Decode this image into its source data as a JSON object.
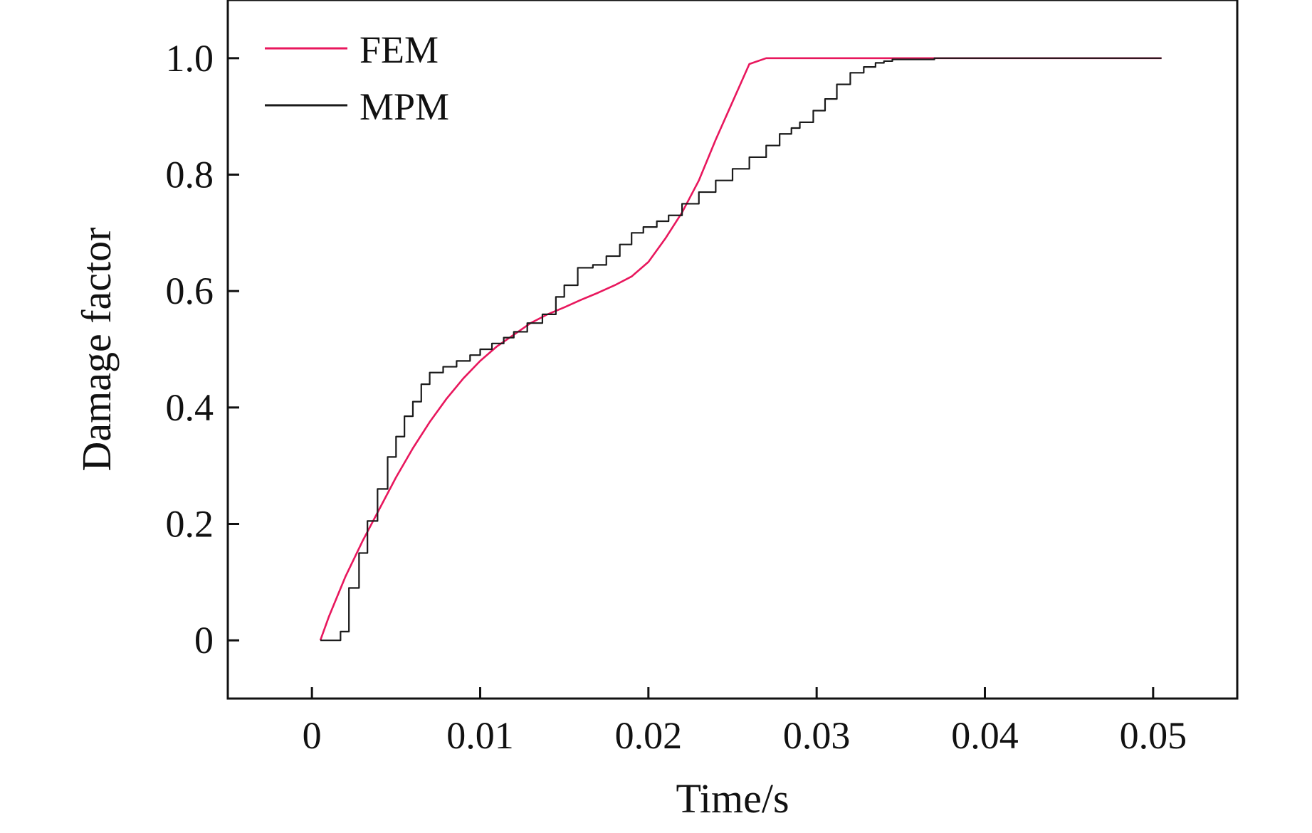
{
  "chart_data": {
    "type": "line",
    "title": "",
    "xlabel": "Time/s",
    "ylabel": "Damage factor",
    "xlim": [
      -0.005,
      0.055
    ],
    "ylim": [
      -0.1,
      1.1
    ],
    "xticks": [
      0,
      0.01,
      0.02,
      0.03,
      0.04,
      0.05
    ],
    "xtick_labels": [
      "0",
      "0.01",
      "0.02",
      "0.03",
      "0.04",
      "0.05"
    ],
    "yticks": [
      0,
      0.2,
      0.4,
      0.6,
      0.8,
      1.0
    ],
    "ytick_labels": [
      "0",
      "0.2",
      "0.4",
      "0.6",
      "0.8",
      "1.0"
    ],
    "grid": false,
    "legend_position": "top-left",
    "series": [
      {
        "name": "FEM",
        "color": "#e8175d",
        "x": [
          0.0005,
          0.001,
          0.002,
          0.003,
          0.004,
          0.005,
          0.006,
          0.007,
          0.008,
          0.009,
          0.01,
          0.011,
          0.012,
          0.013,
          0.014,
          0.015,
          0.016,
          0.017,
          0.018,
          0.019,
          0.02,
          0.021,
          0.022,
          0.023,
          0.024,
          0.025,
          0.026,
          0.027,
          0.028,
          0.03,
          0.035,
          0.04,
          0.045,
          0.0505
        ],
        "y": [
          0.0,
          0.04,
          0.11,
          0.17,
          0.225,
          0.28,
          0.33,
          0.375,
          0.415,
          0.45,
          0.48,
          0.505,
          0.525,
          0.545,
          0.56,
          0.572,
          0.585,
          0.597,
          0.61,
          0.625,
          0.65,
          0.69,
          0.735,
          0.79,
          0.86,
          0.925,
          0.99,
          1.0,
          1.0,
          1.0,
          1.0,
          1.0,
          1.0,
          1.0
        ]
      },
      {
        "name": "MPM",
        "color": "#1a1a1a",
        "stepped": true,
        "x": [
          0.0005,
          0.0017,
          0.0022,
          0.0028,
          0.0033,
          0.0039,
          0.0045,
          0.005,
          0.0055,
          0.006,
          0.0065,
          0.007,
          0.0078,
          0.0086,
          0.0094,
          0.01,
          0.0107,
          0.0114,
          0.012,
          0.0128,
          0.0137,
          0.0145,
          0.015,
          0.0158,
          0.0167,
          0.0175,
          0.0183,
          0.019,
          0.0197,
          0.0205,
          0.0212,
          0.022,
          0.023,
          0.024,
          0.025,
          0.026,
          0.027,
          0.0278,
          0.0285,
          0.029,
          0.0298,
          0.0305,
          0.0312,
          0.032,
          0.0328,
          0.0335,
          0.034,
          0.0345,
          0.037,
          0.042,
          0.047,
          0.0505
        ],
        "y": [
          0.0,
          0.015,
          0.09,
          0.15,
          0.205,
          0.26,
          0.315,
          0.35,
          0.385,
          0.41,
          0.44,
          0.46,
          0.47,
          0.48,
          0.49,
          0.5,
          0.51,
          0.52,
          0.53,
          0.545,
          0.56,
          0.59,
          0.61,
          0.64,
          0.645,
          0.66,
          0.68,
          0.7,
          0.71,
          0.72,
          0.73,
          0.75,
          0.77,
          0.79,
          0.81,
          0.83,
          0.85,
          0.87,
          0.88,
          0.89,
          0.91,
          0.93,
          0.955,
          0.975,
          0.985,
          0.992,
          0.995,
          0.998,
          1.0,
          1.0,
          1.0,
          1.0
        ]
      }
    ]
  }
}
